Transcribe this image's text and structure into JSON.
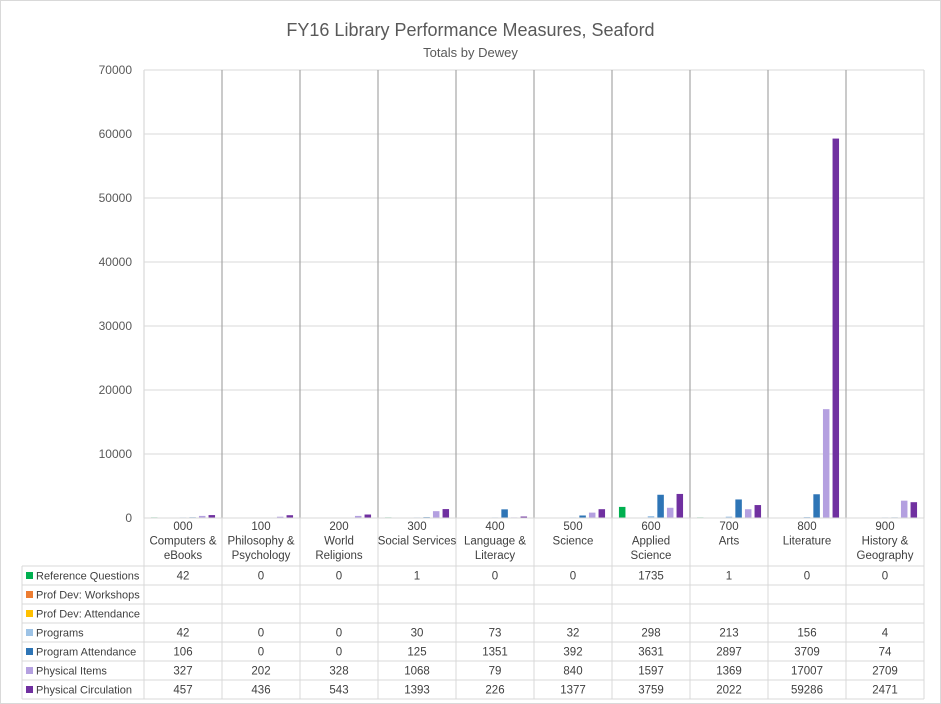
{
  "chart_data": {
    "type": "bar",
    "title": "FY16 Library Performance Measures, Seaford",
    "subtitle": "Totals by Dewey",
    "ylim": [
      0,
      70000
    ],
    "yticks": [
      "70000",
      "60000",
      "50000",
      "40000",
      "30000",
      "20000",
      "10000",
      "0"
    ],
    "categories": [
      [
        "000",
        "Computers &",
        "eBooks"
      ],
      [
        "100",
        "Philosophy &",
        "Psychology"
      ],
      [
        "200",
        "World",
        "Religions"
      ],
      [
        "300",
        "Social Services"
      ],
      [
        "400",
        "Language &",
        "Literacy"
      ],
      [
        "500",
        "Science"
      ],
      [
        "600",
        "Applied",
        "Science"
      ],
      [
        "700",
        "Arts"
      ],
      [
        "800",
        "Literature"
      ],
      [
        "900",
        "History &",
        "Geography"
      ]
    ],
    "series": [
      {
        "name": "Reference Questions",
        "color": "#00b050",
        "values": [
          42,
          0,
          0,
          1,
          0,
          0,
          1735,
          1,
          0,
          0
        ]
      },
      {
        "name": "Prof Dev: Workshops",
        "color": "#ed7d31",
        "values": [
          null,
          null,
          null,
          null,
          null,
          null,
          null,
          null,
          null,
          null
        ]
      },
      {
        "name": "Prof Dev: Attendance",
        "color": "#ffc000",
        "values": [
          null,
          null,
          null,
          null,
          null,
          null,
          null,
          null,
          null,
          null
        ]
      },
      {
        "name": "Programs",
        "color": "#9dc3e6",
        "values": [
          42,
          0,
          0,
          30,
          73,
          32,
          298,
          213,
          156,
          4
        ]
      },
      {
        "name": "Program Attendance",
        "color": "#2e75b6",
        "values": [
          106,
          0,
          0,
          125,
          1351,
          392,
          3631,
          2897,
          3709,
          74
        ]
      },
      {
        "name": "Physical Items",
        "color": "#b4a0e0",
        "values": [
          327,
          202,
          328,
          1068,
          79,
          840,
          1597,
          1369,
          17007,
          2709
        ]
      },
      {
        "name": "Physical Circulation",
        "color": "#7030a0",
        "values": [
          457,
          436,
          543,
          1393,
          226,
          1377,
          3759,
          2022,
          59286,
          2471
        ]
      }
    ],
    "grid": true,
    "legend": "data-table"
  }
}
